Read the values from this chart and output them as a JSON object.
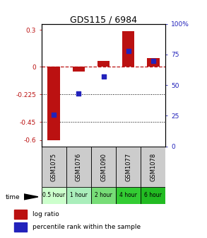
{
  "title": "GDS115 / 6984",
  "samples": [
    "GSM1075",
    "GSM1076",
    "GSM1090",
    "GSM1077",
    "GSM1078"
  ],
  "time_labels": [
    "0.5 hour",
    "1 hour",
    "2 hour",
    "4 hour",
    "6 hour"
  ],
  "time_colors": [
    "#ccffcc",
    "#aaeebb",
    "#77dd77",
    "#33cc33",
    "#22bb22"
  ],
  "log_ratios": [
    -0.6,
    -0.04,
    0.05,
    0.29,
    0.07
  ],
  "percentile_ranks": [
    26,
    43,
    57,
    78,
    70
  ],
  "bar_color": "#bb1111",
  "dot_color": "#2222bb",
  "ylim_left": [
    -0.65,
    0.35
  ],
  "ylim_right": [
    0,
    100
  ],
  "left_ticks": [
    0.3,
    0,
    -0.225,
    -0.45,
    -0.6
  ],
  "right_ticks": [
    100,
    75,
    50,
    25,
    0
  ],
  "dotted_lines": [
    -0.225,
    -0.45
  ],
  "background_color": "#ffffff"
}
